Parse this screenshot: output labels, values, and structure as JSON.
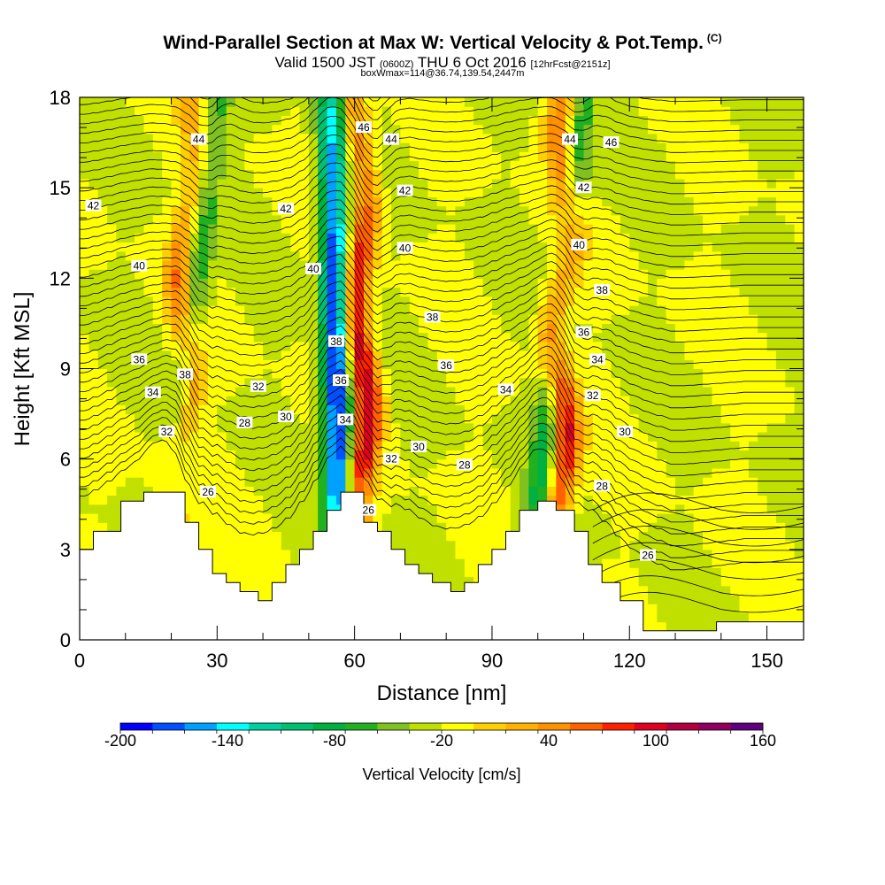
{
  "header": {
    "title": "Wind-Parallel Section at Max W: Vertical Velocity & Pot.Temp.",
    "copyright": "(C)",
    "valid_prefix": "Valid 1500 JST",
    "valid_utc": "(0600Z)",
    "valid_date": "THU 6 Oct 2016",
    "forecast": "[12hrFcst@2151z]",
    "boxwmax": "boxWmax=114@36.74,139.54,2447m"
  },
  "chart_data": {
    "type": "heatmap",
    "xlabel": "Distance [nm]",
    "ylabel": "Height [Kft MSL]",
    "xlim": [
      0,
      158
    ],
    "ylim": [
      0,
      18
    ],
    "x_ticks": [
      0,
      30,
      60,
      90,
      120,
      150
    ],
    "y_ticks": [
      0,
      3,
      6,
      9,
      12,
      15,
      18
    ],
    "colorbar": {
      "label": "Vertical Velocity [cm/s]",
      "tick_labels": [
        "-200",
        "-140",
        "-80",
        "-20",
        "40",
        "100",
        "160"
      ],
      "range": [
        -200,
        160
      ],
      "step": 20,
      "colors": [
        "#0000ff",
        "#0050ff",
        "#00a0ff",
        "#00ffff",
        "#00d0a0",
        "#00c070",
        "#00b040",
        "#20b020",
        "#80c020",
        "#c0e000",
        "#ffff00",
        "#ffd000",
        "#ffb000",
        "#ff9000",
        "#ff6000",
        "#ff2000",
        "#e00020",
        "#b00040",
        "#900060",
        "#600080"
      ]
    },
    "updrafts": [
      {
        "surface_x": 20,
        "top_x": 25,
        "peak_cm_s": 100
      },
      {
        "surface_x": 62,
        "top_x": 61,
        "peak_cm_s": 140
      },
      {
        "surface_x": 104,
        "top_x": 106,
        "peak_cm_s": 140
      }
    ],
    "downdrafts": [
      {
        "surface_x": 16,
        "top_x": 30,
        "min_cm_s": -80
      },
      {
        "surface_x": 57,
        "top_x": 55,
        "min_cm_s": -200
      },
      {
        "surface_x": 97,
        "top_x": 110,
        "min_cm_s": -80
      }
    ],
    "terrain_kft": [
      [
        0,
        3.0
      ],
      [
        3,
        3.0
      ],
      [
        3,
        3.6
      ],
      [
        9,
        3.6
      ],
      [
        9,
        4.6
      ],
      [
        14,
        4.6
      ],
      [
        14,
        4.9
      ],
      [
        23,
        4.9
      ],
      [
        23,
        3.9
      ],
      [
        26,
        3.9
      ],
      [
        26,
        3.0
      ],
      [
        29,
        3.0
      ],
      [
        29,
        2.2
      ],
      [
        32,
        2.2
      ],
      [
        32,
        1.9
      ],
      [
        35,
        1.9
      ],
      [
        35,
        1.6
      ],
      [
        39,
        1.6
      ],
      [
        39,
        1.3
      ],
      [
        42,
        1.3
      ],
      [
        42,
        1.9
      ],
      [
        45,
        1.9
      ],
      [
        45,
        2.5
      ],
      [
        48,
        2.5
      ],
      [
        48,
        3.0
      ],
      [
        51,
        3.0
      ],
      [
        51,
        3.6
      ],
      [
        54,
        3.6
      ],
      [
        54,
        4.3
      ],
      [
        57,
        4.3
      ],
      [
        57,
        4.9
      ],
      [
        62,
        4.9
      ],
      [
        62,
        3.9
      ],
      [
        65,
        3.9
      ],
      [
        65,
        3.6
      ],
      [
        68,
        3.6
      ],
      [
        68,
        3.0
      ],
      [
        71,
        3.0
      ],
      [
        71,
        2.5
      ],
      [
        74,
        2.5
      ],
      [
        74,
        2.2
      ],
      [
        77,
        2.2
      ],
      [
        77,
        1.9
      ],
      [
        81,
        1.9
      ],
      [
        81,
        1.6
      ],
      [
        84,
        1.6
      ],
      [
        84,
        1.9
      ],
      [
        87,
        1.9
      ],
      [
        87,
        2.5
      ],
      [
        90,
        2.5
      ],
      [
        90,
        3.0
      ],
      [
        93,
        3.0
      ],
      [
        93,
        3.6
      ],
      [
        96,
        3.6
      ],
      [
        96,
        4.3
      ],
      [
        100,
        4.3
      ],
      [
        100,
        4.6
      ],
      [
        104,
        4.6
      ],
      [
        104,
        4.3
      ],
      [
        108,
        4.3
      ],
      [
        108,
        3.6
      ],
      [
        111,
        3.6
      ],
      [
        111,
        2.5
      ],
      [
        114,
        2.5
      ],
      [
        114,
        1.9
      ],
      [
        118,
        1.9
      ],
      [
        118,
        1.3
      ],
      [
        123,
        1.3
      ],
      [
        123,
        0.3
      ],
      [
        139,
        0.3
      ],
      [
        139,
        0.6
      ],
      [
        158,
        0.6
      ]
    ],
    "isentrope_labels": [
      {
        "text": "42",
        "x": 3,
        "y": 14.4
      },
      {
        "text": "40",
        "x": 13,
        "y": 12.4
      },
      {
        "text": "36",
        "x": 13,
        "y": 9.3
      },
      {
        "text": "34",
        "x": 16,
        "y": 8.2
      },
      {
        "text": "32",
        "x": 19,
        "y": 6.9
      },
      {
        "text": "38",
        "x": 23,
        "y": 8.8
      },
      {
        "text": "44",
        "x": 26,
        "y": 16.6
      },
      {
        "text": "26",
        "x": 28,
        "y": 4.9
      },
      {
        "text": "28",
        "x": 36,
        "y": 7.2
      },
      {
        "text": "32",
        "x": 39,
        "y": 8.4
      },
      {
        "text": "30",
        "x": 45,
        "y": 7.4
      },
      {
        "text": "42",
        "x": 45,
        "y": 14.3
      },
      {
        "text": "40",
        "x": 51,
        "y": 12.3
      },
      {
        "text": "38",
        "x": 56,
        "y": 9.9
      },
      {
        "text": "36",
        "x": 57,
        "y": 8.6
      },
      {
        "text": "34",
        "x": 58,
        "y": 7.3
      },
      {
        "text": "46",
        "x": 62,
        "y": 17.0
      },
      {
        "text": "44",
        "x": 68,
        "y": 16.6
      },
      {
        "text": "26",
        "x": 63,
        "y": 4.3
      },
      {
        "text": "32",
        "x": 68,
        "y": 6.0
      },
      {
        "text": "42",
        "x": 71,
        "y": 14.9
      },
      {
        "text": "40",
        "x": 71,
        "y": 13.0
      },
      {
        "text": "30",
        "x": 74,
        "y": 6.4
      },
      {
        "text": "38",
        "x": 77,
        "y": 10.7
      },
      {
        "text": "36",
        "x": 80,
        "y": 9.1
      },
      {
        "text": "28",
        "x": 84,
        "y": 5.8
      },
      {
        "text": "34",
        "x": 93,
        "y": 8.3
      },
      {
        "text": "44",
        "x": 107,
        "y": 16.6
      },
      {
        "text": "42",
        "x": 110,
        "y": 15.0
      },
      {
        "text": "40",
        "x": 109,
        "y": 13.1
      },
      {
        "text": "46",
        "x": 116,
        "y": 16.5
      },
      {
        "text": "38",
        "x": 114,
        "y": 11.6
      },
      {
        "text": "36",
        "x": 110,
        "y": 10.2
      },
      {
        "text": "34",
        "x": 113,
        "y": 9.3
      },
      {
        "text": "32",
        "x": 112,
        "y": 8.1
      },
      {
        "text": "30",
        "x": 119,
        "y": 6.9
      },
      {
        "text": "28",
        "x": 114,
        "y": 5.1
      },
      {
        "text": "26",
        "x": 124,
        "y": 2.8
      }
    ]
  }
}
